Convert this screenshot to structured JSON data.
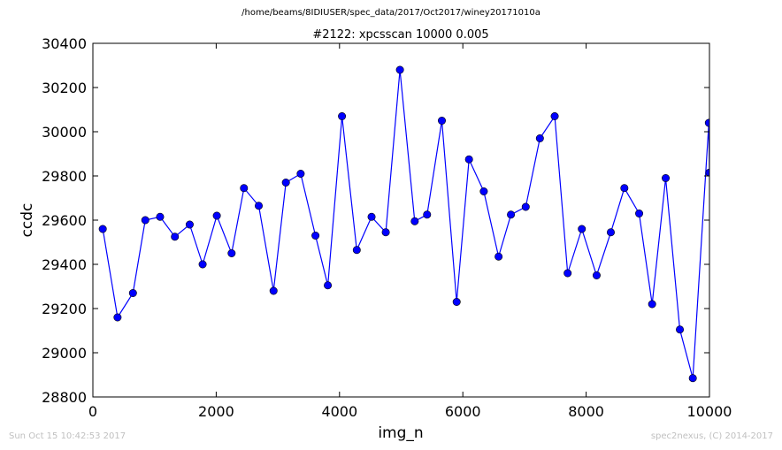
{
  "header": {
    "path": "/home/beams/8IDIUSER/spec_data/2017/Oct2017/winey20171010a"
  },
  "footer": {
    "timestamp": "Sun Oct 15 10:42:53 2017",
    "copyright": "spec2nexus, (C) 2014-2017"
  },
  "colors": {
    "series": "#0000ff",
    "background": "#ffffff",
    "footer_text": "#c0c0c0"
  },
  "chart_data": {
    "type": "line",
    "title": "#2122: xpcsscan 10000 0.005",
    "xlabel": "img_n",
    "ylabel": "ccdc",
    "xlim": [
      0,
      10000
    ],
    "ylim": [
      28800,
      30400
    ],
    "xticks": [
      "0",
      "2000",
      "4000",
      "6000",
      "8000",
      "10000"
    ],
    "yticks": [
      "28800",
      "29000",
      "29200",
      "29400",
      "29600",
      "29800",
      "30000",
      "30200",
      "30400"
    ],
    "marker": "circle",
    "grid": false,
    "series": [
      {
        "x": [
          160,
          400,
          650,
          850,
          1090,
          1330,
          1570,
          1780,
          2010,
          2250,
          2450,
          2690,
          2930,
          3130,
          3370,
          3610,
          3810,
          4040,
          4280,
          4520,
          4750,
          4980,
          5220,
          5420,
          5660,
          5900,
          6100,
          6340,
          6580,
          6780,
          7020,
          7250,
          7490,
          7700,
          7930,
          8170,
          8400,
          8620,
          8860,
          9070,
          9290,
          9520,
          9730,
          9990,
          10000
        ],
        "y": [
          29560,
          29160,
          29270,
          29600,
          29615,
          29525,
          29580,
          29400,
          29620,
          29450,
          29745,
          29665,
          29280,
          29770,
          29810,
          29530,
          29305,
          30070,
          29465,
          29615,
          29545,
          30280,
          29595,
          29625,
          30050,
          29230,
          29875,
          29730,
          29435,
          29625,
          29660,
          29970,
          30070,
          29360,
          29560,
          29350,
          29545,
          29745,
          29630,
          29220,
          29790,
          29105,
          28885,
          30040,
          29815
        ]
      }
    ]
  }
}
